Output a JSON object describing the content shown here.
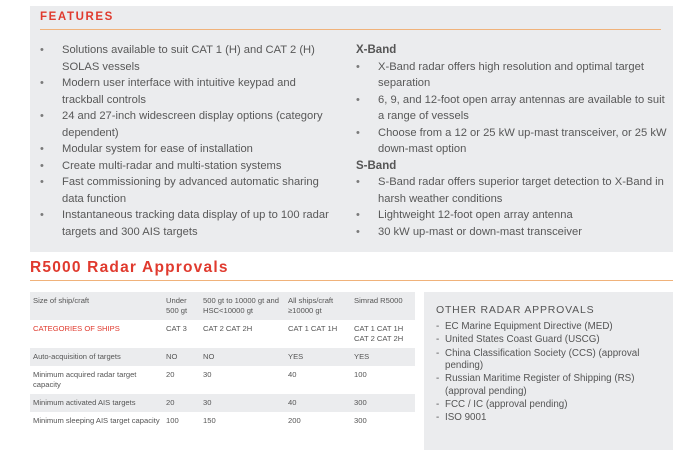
{
  "features": {
    "title": "FEATURES",
    "left_items": [
      "Solutions available to suit CAT 1 (H) and CAT 2 (H) SOLAS vessels",
      "Modern user interface with intuitive keypad and trackball controls",
      "24 and 27-inch widescreen display options (category dependent)",
      "Modular system for ease of installation",
      "Create multi-radar and multi-station systems",
      "Fast commissioning by advanced automatic sharing data function",
      "Instantaneous tracking data display of up to 100 radar targets and 300 AIS targets"
    ],
    "xband": {
      "heading": "X-Band",
      "items": [
        "X-Band radar offers high resolution and optimal target separation",
        "6, 9, and 12-foot open array antennas are available to suit a range of vessels",
        "Choose from a 12 or 25 kW up-mast transceiver, or 25 kW down-mast option"
      ]
    },
    "sband": {
      "heading": "S-Band",
      "items": [
        "S-Band radar offers superior target detection to X-Band in harsh weather conditions",
        "Lightweight 12-foot open array antenna",
        "30 kW up-mast or down-mast transceiver"
      ]
    },
    "bullet_glyph": "•"
  },
  "approvals": {
    "title": "R5000 Radar Approvals",
    "table": {
      "headers": [
        "Size of ship/craft",
        "Under 500 gt",
        "500 gt to 10000 gt and HSC<10000 gt",
        "All ships/craft ≥10000 gt",
        "Simrad R5000"
      ],
      "rows": [
        [
          "CATEGORIES OF SHIPS",
          "CAT 3",
          "CAT 2 CAT 2H",
          "CAT 1 CAT 1H",
          "CAT 1 CAT 1H CAT 2 CAT 2H"
        ],
        [
          "Auto-acquisition of targets",
          "NO",
          "NO",
          "YES",
          "YES"
        ],
        [
          "Minimum acquired radar target capacity",
          "20",
          "30",
          "40",
          "100"
        ],
        [
          "Minimum activated AIS targets",
          "20",
          "30",
          "40",
          "300"
        ],
        [
          "Minimum sleeping AIS target capacity",
          "100",
          "150",
          "200",
          "300"
        ]
      ]
    }
  },
  "other_approvals": {
    "title": "OTHER RADAR APPROVALS",
    "dash_glyph": "-",
    "items": [
      "EC Marine Equipment Directive (MED)",
      "United States Coast Guard (USCG)",
      "China Classification Society (CCS) (approval pending)",
      "Russian Maritime Register of Shipping (RS) (approval pending)",
      "FCC / IC (approval pending)",
      "ISO 9001"
    ]
  },
  "colors": {
    "accent_red": "#e03a2e",
    "rule_orange": "#f0b27a",
    "panel_gray": "#ebecee",
    "text_gray": "#555555"
  }
}
